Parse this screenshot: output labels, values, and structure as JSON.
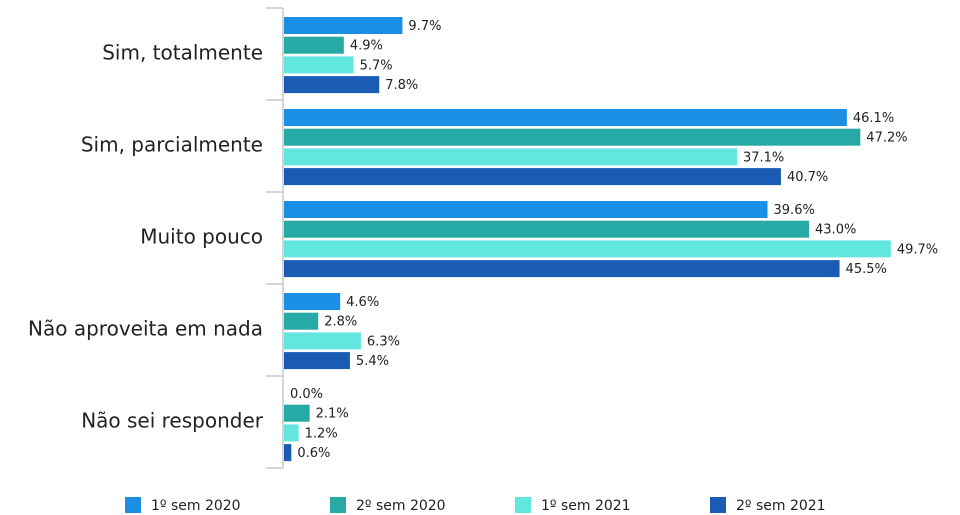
{
  "chart_data": {
    "type": "bar",
    "orientation": "horizontal",
    "categories": [
      "Sim, totalmente",
      "Sim, parcialmente",
      "Muito pouco",
      "Não aproveita em nada",
      "Não sei responder"
    ],
    "series": [
      {
        "name": "1º sem 2020",
        "color": "#1a8fe3",
        "values": [
          9.7,
          46.1,
          39.6,
          4.6,
          0.0
        ],
        "value_labels": [
          "9.7%",
          "46.1%",
          "39.6%",
          "4.6%",
          "0.0%"
        ]
      },
      {
        "name": "2º sem 2020",
        "color": "#27aaa6",
        "values": [
          4.9,
          47.2,
          43.0,
          2.8,
          2.1
        ],
        "value_labels": [
          "4.9%",
          "47.2%",
          "43.0%",
          "2.8%",
          "2.1%"
        ]
      },
      {
        "name": "1º sem 2021",
        "color": "#63e6de",
        "values": [
          5.7,
          37.1,
          49.7,
          6.3,
          1.2
        ],
        "value_labels": [
          "5.7%",
          "37.1%",
          "49.7%",
          "6.3%",
          "1.2%"
        ]
      },
      {
        "name": "2º sem 2021",
        "color": "#1a5bb5",
        "values": [
          7.8,
          40.7,
          45.5,
          5.4,
          0.6
        ],
        "value_labels": [
          "7.8%",
          "40.7%",
          "45.5%",
          "5.4%",
          "0.6%"
        ]
      }
    ]
  }
}
